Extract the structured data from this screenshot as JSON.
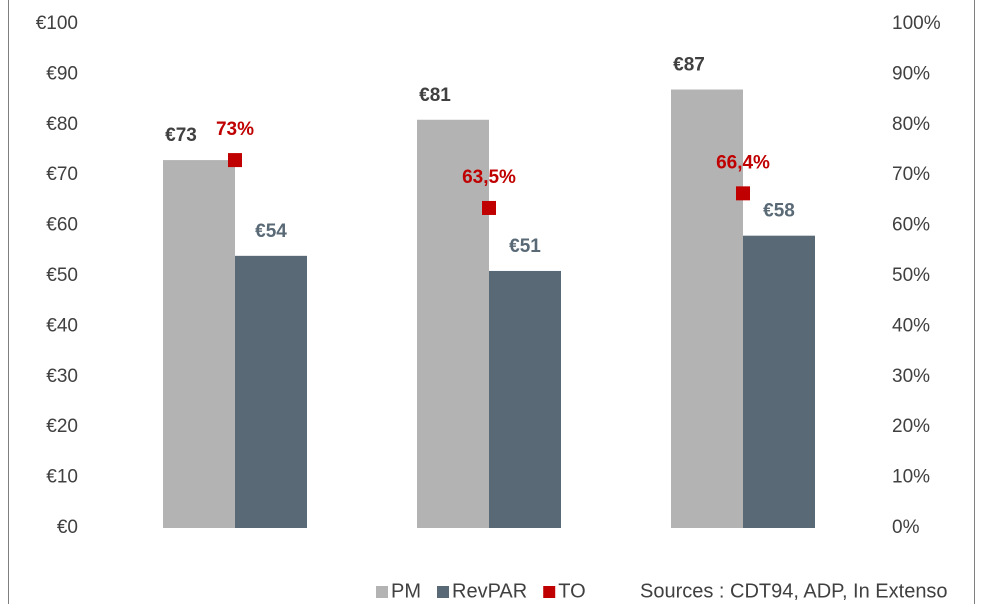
{
  "chart_data": {
    "type": "bar",
    "categories": [
      null,
      null,
      null
    ],
    "series": [
      {
        "name": "PM",
        "color": "#b3b3b3",
        "values": [
          73,
          81,
          87
        ],
        "value_labels": [
          "€73",
          "€81",
          "€87"
        ]
      },
      {
        "name": "RevPAR",
        "color": "#596a76",
        "values": [
          54,
          51,
          58
        ],
        "value_labels": [
          "€54",
          "€51",
          "€58"
        ]
      },
      {
        "name": "TO",
        "color": "#c00000",
        "type": "scatter",
        "axis": "y2",
        "values": [
          73,
          63.5,
          66.4
        ],
        "value_labels": [
          "73%",
          "63,5%",
          "66,4%"
        ]
      }
    ],
    "ylim": [
      0,
      100
    ],
    "yticks": [
      {
        "value": 0,
        "label": "€0"
      },
      {
        "value": 10,
        "label": "€10"
      },
      {
        "value": 20,
        "label": "€20"
      },
      {
        "value": 30,
        "label": "€30"
      },
      {
        "value": 40,
        "label": "€40"
      },
      {
        "value": 50,
        "label": "€50"
      },
      {
        "value": 60,
        "label": "€60"
      },
      {
        "value": 70,
        "label": "€70"
      },
      {
        "value": 80,
        "label": "€80"
      },
      {
        "value": 90,
        "label": "€90"
      },
      {
        "value": 100,
        "label": "€100"
      }
    ],
    "y2lim": [
      0,
      100
    ],
    "y2ticks": [
      {
        "value": 0,
        "label": "0%"
      },
      {
        "value": 10,
        "label": "10%"
      },
      {
        "value": 20,
        "label": "20%"
      },
      {
        "value": 30,
        "label": "30%"
      },
      {
        "value": 40,
        "label": "40%"
      },
      {
        "value": 50,
        "label": "50%"
      },
      {
        "value": 60,
        "label": "60%"
      },
      {
        "value": 70,
        "label": "70%"
      },
      {
        "value": 80,
        "label": "80%"
      },
      {
        "value": 90,
        "label": "90%"
      },
      {
        "value": 100,
        "label": "100%"
      }
    ],
    "legend": "bottom",
    "source": "Sources : CDT94, ADP, In Extenso"
  }
}
